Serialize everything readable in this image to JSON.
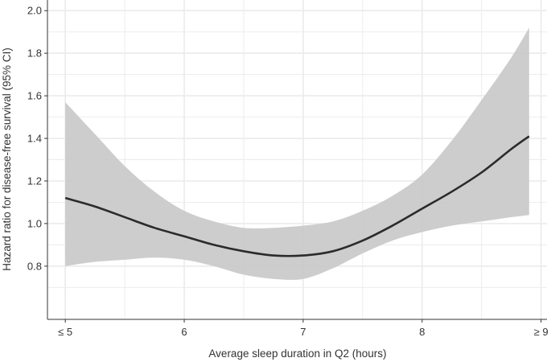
{
  "chart_data": {
    "type": "line",
    "xlabel": "Average sleep duration in Q2 (hours)",
    "ylabel": "Hazard ratio for disease-free survival (95% CI)",
    "xlim": [
      4.85,
      9.05
    ],
    "ylim": [
      0.55,
      2.05
    ],
    "x_ticks": [
      {
        "value": 5,
        "label": "≤ 5"
      },
      {
        "value": 6,
        "label": "6"
      },
      {
        "value": 7,
        "label": "7"
      },
      {
        "value": 8,
        "label": "8"
      },
      {
        "value": 9,
        "label": "≥ 9"
      }
    ],
    "y_ticks": [
      {
        "value": 0.8,
        "label": "0.8"
      },
      {
        "value": 1.0,
        "label": "1.0"
      },
      {
        "value": 1.2,
        "label": "1.2"
      },
      {
        "value": 1.4,
        "label": "1.4"
      },
      {
        "value": 1.6,
        "label": "1.6"
      },
      {
        "value": 1.8,
        "label": "1.8"
      },
      {
        "value": 2.0,
        "label": "2.0"
      }
    ],
    "grid": true,
    "colors": {
      "panel_background": "#ffffff",
      "grid": "#ebebeb",
      "line": "#2b2b2b",
      "ci_band": "#c8c8c8",
      "axis": "#333333"
    },
    "series": [
      {
        "x": [
          5.0,
          5.25,
          5.5,
          5.75,
          6.0,
          6.25,
          6.5,
          6.75,
          7.0,
          7.25,
          7.5,
          7.75,
          8.0,
          8.25,
          8.5,
          8.75,
          8.9
        ],
        "y": [
          1.12,
          1.08,
          1.03,
          0.98,
          0.94,
          0.9,
          0.87,
          0.85,
          0.85,
          0.87,
          0.92,
          0.99,
          1.07,
          1.15,
          1.24,
          1.35,
          1.41
        ],
        "lower": [
          0.8,
          0.82,
          0.83,
          0.84,
          0.83,
          0.8,
          0.76,
          0.74,
          0.74,
          0.79,
          0.86,
          0.92,
          0.96,
          0.99,
          1.01,
          1.03,
          1.04
        ],
        "upper": [
          1.57,
          1.42,
          1.27,
          1.15,
          1.06,
          1.01,
          0.98,
          0.98,
          0.99,
          1.01,
          1.06,
          1.13,
          1.23,
          1.39,
          1.58,
          1.78,
          1.92
        ]
      }
    ]
  }
}
